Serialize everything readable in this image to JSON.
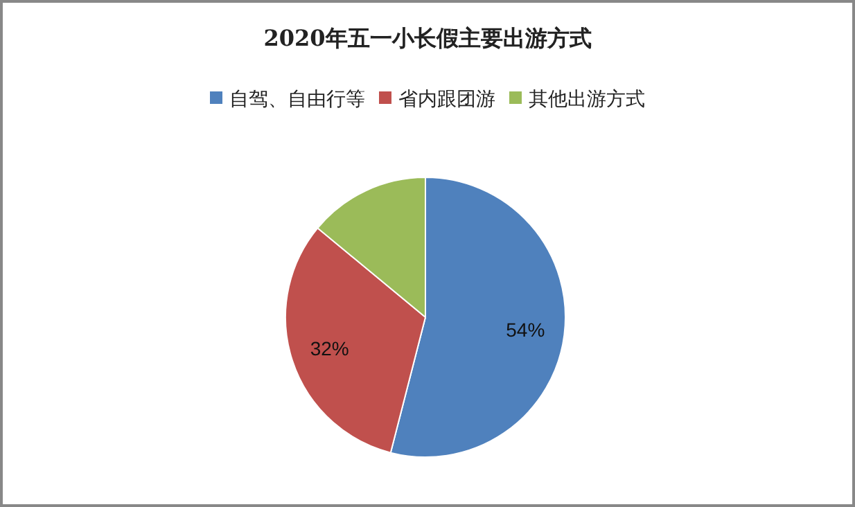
{
  "chart_data": {
    "type": "pie",
    "title": "2020年五一小长假主要出游方式",
    "categories": [
      "自驾、自由行等",
      "省内跟团游",
      "其他出游方式"
    ],
    "values": [
      54,
      32,
      14
    ],
    "colors": [
      "#4f81bd",
      "#c0504d",
      "#9bbb59"
    ],
    "value_labels": [
      "54%",
      "32%",
      null
    ],
    "legend": "top"
  }
}
